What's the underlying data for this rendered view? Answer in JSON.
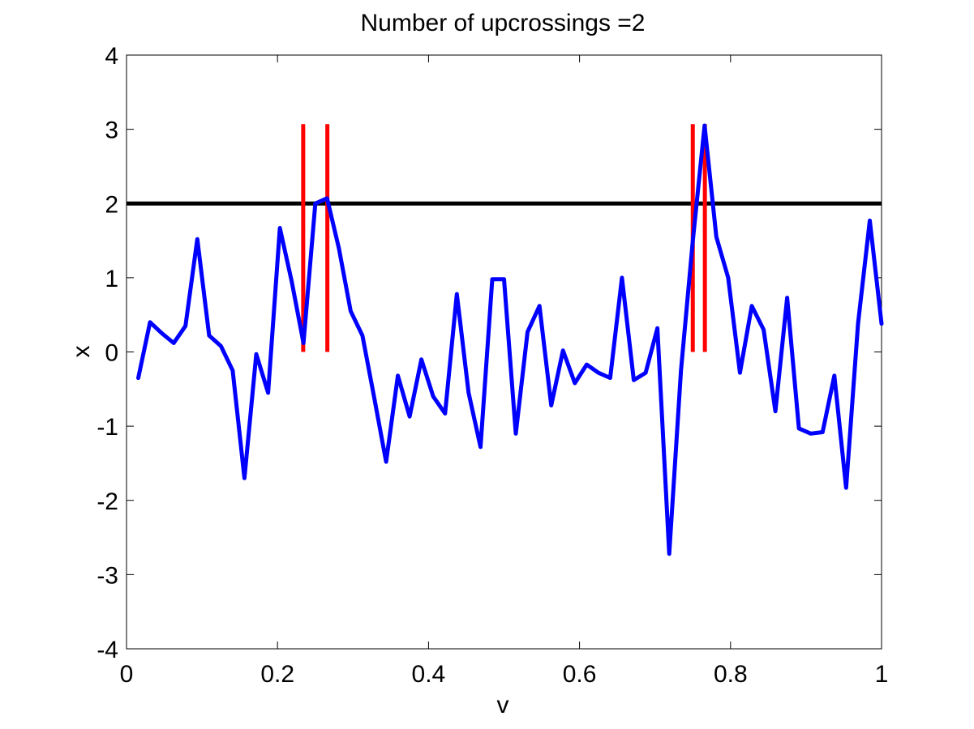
{
  "chart_data": {
    "type": "line",
    "title": "Number of upcrossings =2",
    "xlabel": "v",
    "ylabel": "x",
    "xlim": [
      0,
      1
    ],
    "ylim": [
      -4,
      4
    ],
    "xticks": [
      "0",
      "0.2",
      "0.4",
      "0.6",
      "0.8",
      "1"
    ],
    "xtick_values": [
      0,
      0.2,
      0.4,
      0.6,
      0.8,
      1
    ],
    "yticks": [
      "-4",
      "-3",
      "-2",
      "-1",
      "0",
      "1",
      "2",
      "3",
      "4"
    ],
    "ytick_values": [
      -4,
      -3,
      -2,
      -1,
      0,
      1,
      2,
      3,
      4
    ],
    "grid": false,
    "threshold": 2,
    "upcrossing_markers": [
      {
        "x": 0.234,
        "y0": 0,
        "y1": 3.07
      },
      {
        "x": 0.266,
        "y0": 0,
        "y1": 3.07
      },
      {
        "x": 0.75,
        "y0": 0,
        "y1": 3.07
      },
      {
        "x": 0.766,
        "y0": 0,
        "y1": 3.07
      }
    ],
    "series": [
      {
        "x": [
          0.0156,
          0.0312,
          0.0469,
          0.0625,
          0.0781,
          0.0938,
          0.1094,
          0.125,
          0.1406,
          0.1562,
          0.1719,
          0.1875,
          0.2031,
          0.2188,
          0.2344,
          0.25,
          0.2656,
          0.2812,
          0.2969,
          0.3125,
          0.3281,
          0.3438,
          0.3594,
          0.375,
          0.3906,
          0.4062,
          0.4219,
          0.4375,
          0.4531,
          0.4688,
          0.4844,
          0.5,
          0.5156,
          0.5312,
          0.5469,
          0.5625,
          0.5781,
          0.5938,
          0.6094,
          0.625,
          0.6406,
          0.6562,
          0.6719,
          0.6875,
          0.7031,
          0.7188,
          0.7344,
          0.75,
          0.7656,
          0.7812,
          0.7969,
          0.8125,
          0.8281,
          0.8438,
          0.8594,
          0.875,
          0.8906,
          0.9062,
          0.9219,
          0.9375,
          0.9531,
          0.9688,
          0.9844,
          1.0
        ],
        "values": [
          -0.35,
          0.4,
          0.25,
          0.12,
          0.35,
          1.52,
          0.22,
          0.08,
          -0.25,
          -1.7,
          -0.03,
          -0.55,
          1.67,
          0.95,
          0.12,
          2.0,
          2.07,
          1.4,
          0.55,
          0.22,
          -0.62,
          -1.48,
          -0.32,
          -0.87,
          -0.1,
          -0.6,
          -0.83,
          0.78,
          -0.55,
          -1.28,
          0.98,
          0.98,
          -1.1,
          0.27,
          0.62,
          -0.72,
          0.02,
          -0.42,
          -0.17,
          -0.28,
          -0.35,
          1.0,
          -0.38,
          -0.28,
          0.32,
          -2.72,
          -0.25,
          1.5,
          3.05,
          1.55,
          1.0,
          -0.28,
          0.62,
          0.3,
          -0.8,
          0.73,
          -1.03,
          -1.1,
          -1.08,
          -0.32,
          -1.83,
          0.38,
          1.77,
          0.38
        ]
      }
    ],
    "colors": {
      "series": "#0000ff",
      "threshold": "#000000",
      "markers": "#ff0000",
      "axes": "#000000"
    }
  }
}
